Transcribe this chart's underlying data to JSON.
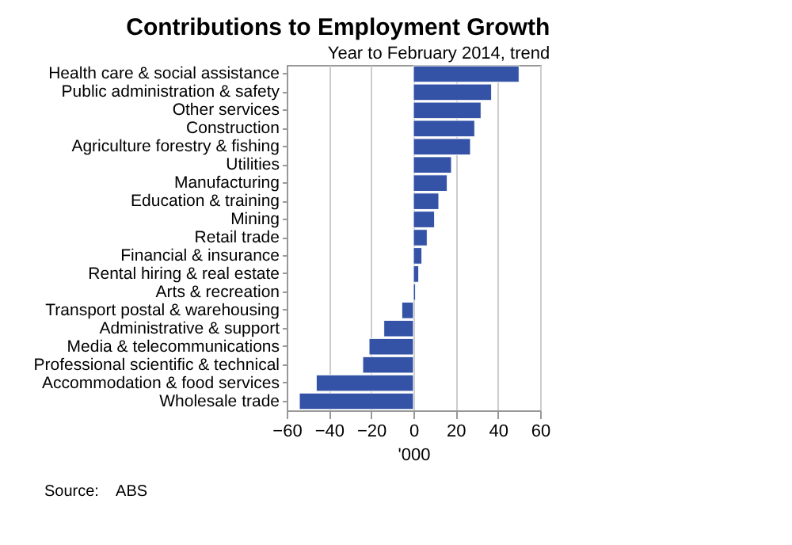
{
  "chart_data": {
    "type": "bar",
    "orientation": "horizontal",
    "title": "Contributions to Employment Growth",
    "subtitle": "Year to February 2014, trend",
    "xlabel": "'000",
    "categories": [
      "Health care & social assistance",
      "Public administration & safety",
      "Other services",
      "Construction",
      "Agriculture forestry & fishing",
      "Utilities",
      "Manufacturing",
      "Education & training",
      "Mining",
      "Retail trade",
      "Financial & insurance",
      "Rental hiring & real estate",
      "Arts & recreation",
      "Transport postal & warehousing",
      "Administrative & support",
      "Media & telecommunications",
      "Professional scientific & technical",
      "Accommodation & food services",
      "Wholesale trade"
    ],
    "values": [
      50,
      37,
      32,
      29,
      27,
      18,
      16,
      12,
      10,
      6.5,
      4,
      2.5,
      1,
      -5.5,
      -14,
      -21,
      -24,
      -46,
      -54
    ],
    "color": "#3452a6",
    "xlim": [
      -60,
      60
    ],
    "xticks": [
      -60,
      -40,
      -20,
      0,
      20,
      40,
      60
    ],
    "grid": "x",
    "annotations": [
      "Source:    ABS"
    ]
  }
}
